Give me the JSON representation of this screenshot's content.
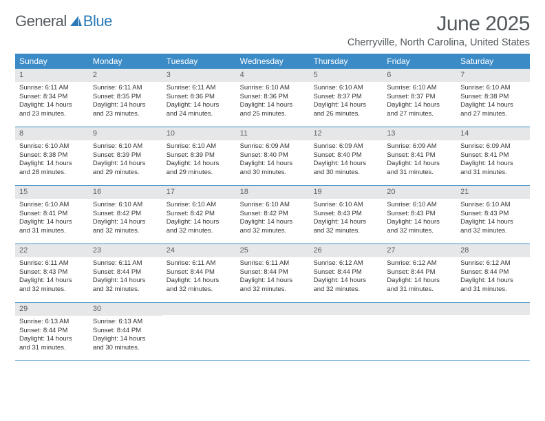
{
  "logo": {
    "text1": "General",
    "text2": "Blue"
  },
  "header": {
    "month": "June 2025",
    "location": "Cherryville, North Carolina, United States"
  },
  "dayNames": [
    "Sunday",
    "Monday",
    "Tuesday",
    "Wednesday",
    "Thursday",
    "Friday",
    "Saturday"
  ],
  "colors": {
    "headerBg": "#3b8bc7",
    "numberBg": "#e6e7e8",
    "border": "#3b8bc7"
  },
  "weeks": [
    [
      {
        "n": "1",
        "sr": "6:11 AM",
        "ss": "8:34 PM",
        "dl": "14 hours and 23 minutes."
      },
      {
        "n": "2",
        "sr": "6:11 AM",
        "ss": "8:35 PM",
        "dl": "14 hours and 23 minutes."
      },
      {
        "n": "3",
        "sr": "6:11 AM",
        "ss": "8:36 PM",
        "dl": "14 hours and 24 minutes."
      },
      {
        "n": "4",
        "sr": "6:10 AM",
        "ss": "8:36 PM",
        "dl": "14 hours and 25 minutes."
      },
      {
        "n": "5",
        "sr": "6:10 AM",
        "ss": "8:37 PM",
        "dl": "14 hours and 26 minutes."
      },
      {
        "n": "6",
        "sr": "6:10 AM",
        "ss": "8:37 PM",
        "dl": "14 hours and 27 minutes."
      },
      {
        "n": "7",
        "sr": "6:10 AM",
        "ss": "8:38 PM",
        "dl": "14 hours and 27 minutes."
      }
    ],
    [
      {
        "n": "8",
        "sr": "6:10 AM",
        "ss": "8:38 PM",
        "dl": "14 hours and 28 minutes."
      },
      {
        "n": "9",
        "sr": "6:10 AM",
        "ss": "8:39 PM",
        "dl": "14 hours and 29 minutes."
      },
      {
        "n": "10",
        "sr": "6:10 AM",
        "ss": "8:39 PM",
        "dl": "14 hours and 29 minutes."
      },
      {
        "n": "11",
        "sr": "6:09 AM",
        "ss": "8:40 PM",
        "dl": "14 hours and 30 minutes."
      },
      {
        "n": "12",
        "sr": "6:09 AM",
        "ss": "8:40 PM",
        "dl": "14 hours and 30 minutes."
      },
      {
        "n": "13",
        "sr": "6:09 AM",
        "ss": "8:41 PM",
        "dl": "14 hours and 31 minutes."
      },
      {
        "n": "14",
        "sr": "6:09 AM",
        "ss": "8:41 PM",
        "dl": "14 hours and 31 minutes."
      }
    ],
    [
      {
        "n": "15",
        "sr": "6:10 AM",
        "ss": "8:41 PM",
        "dl": "14 hours and 31 minutes."
      },
      {
        "n": "16",
        "sr": "6:10 AM",
        "ss": "8:42 PM",
        "dl": "14 hours and 32 minutes."
      },
      {
        "n": "17",
        "sr": "6:10 AM",
        "ss": "8:42 PM",
        "dl": "14 hours and 32 minutes."
      },
      {
        "n": "18",
        "sr": "6:10 AM",
        "ss": "8:42 PM",
        "dl": "14 hours and 32 minutes."
      },
      {
        "n": "19",
        "sr": "6:10 AM",
        "ss": "8:43 PM",
        "dl": "14 hours and 32 minutes."
      },
      {
        "n": "20",
        "sr": "6:10 AM",
        "ss": "8:43 PM",
        "dl": "14 hours and 32 minutes."
      },
      {
        "n": "21",
        "sr": "6:10 AM",
        "ss": "8:43 PM",
        "dl": "14 hours and 32 minutes."
      }
    ],
    [
      {
        "n": "22",
        "sr": "6:11 AM",
        "ss": "8:43 PM",
        "dl": "14 hours and 32 minutes."
      },
      {
        "n": "23",
        "sr": "6:11 AM",
        "ss": "8:44 PM",
        "dl": "14 hours and 32 minutes."
      },
      {
        "n": "24",
        "sr": "6:11 AM",
        "ss": "8:44 PM",
        "dl": "14 hours and 32 minutes."
      },
      {
        "n": "25",
        "sr": "6:11 AM",
        "ss": "8:44 PM",
        "dl": "14 hours and 32 minutes."
      },
      {
        "n": "26",
        "sr": "6:12 AM",
        "ss": "8:44 PM",
        "dl": "14 hours and 32 minutes."
      },
      {
        "n": "27",
        "sr": "6:12 AM",
        "ss": "8:44 PM",
        "dl": "14 hours and 31 minutes."
      },
      {
        "n": "28",
        "sr": "6:12 AM",
        "ss": "8:44 PM",
        "dl": "14 hours and 31 minutes."
      }
    ],
    [
      {
        "n": "29",
        "sr": "6:13 AM",
        "ss": "8:44 PM",
        "dl": "14 hours and 31 minutes."
      },
      {
        "n": "30",
        "sr": "6:13 AM",
        "ss": "8:44 PM",
        "dl": "14 hours and 30 minutes."
      },
      {
        "empty": true
      },
      {
        "empty": true
      },
      {
        "empty": true
      },
      {
        "empty": true
      },
      {
        "empty": true
      }
    ]
  ],
  "labels": {
    "sunrise": "Sunrise: ",
    "sunset": "Sunset: ",
    "daylight": "Daylight: "
  }
}
